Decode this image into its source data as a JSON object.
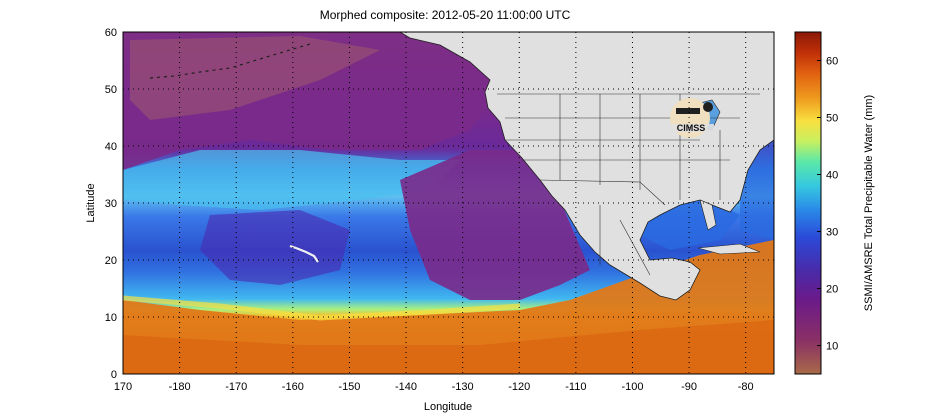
{
  "title": "Morphed composite: 2012-05-20 11:00:00 UTC",
  "axes": {
    "xlabel": "Longitude",
    "ylabel": "Latitude",
    "xticks": [
      "170",
      "-180",
      "-170",
      "-160",
      "-150",
      "-140",
      "-130",
      "-120",
      "-110",
      "-100",
      "-90",
      "-80"
    ],
    "yticks": [
      "0",
      "10",
      "20",
      "30",
      "40",
      "50",
      "60"
    ],
    "x_range_lon": [
      170,
      285
    ],
    "y_range_lat": [
      0,
      60
    ],
    "grid": "dotted"
  },
  "colorbar": {
    "label": "SSMI/AMSRE Total Precipitable Water (mm)",
    "ticks": [
      "10",
      "20",
      "30",
      "40",
      "50",
      "60"
    ],
    "range": [
      5,
      65
    ],
    "colors": [
      "#a86a48",
      "#8a2f66",
      "#6a1a8a",
      "#4a2aa8",
      "#2a4ad8",
      "#2a8ae8",
      "#36c8e0",
      "#5ae8a8",
      "#c8f060",
      "#f8e040",
      "#f0a020",
      "#e06010",
      "#c03008",
      "#8a1808"
    ]
  },
  "logo": {
    "text": "CIMSS"
  },
  "colors": {
    "land": "#e0e0e0",
    "dry": "#9a3a78",
    "moist": "#2a7ae0",
    "wet": "#e07010"
  }
}
